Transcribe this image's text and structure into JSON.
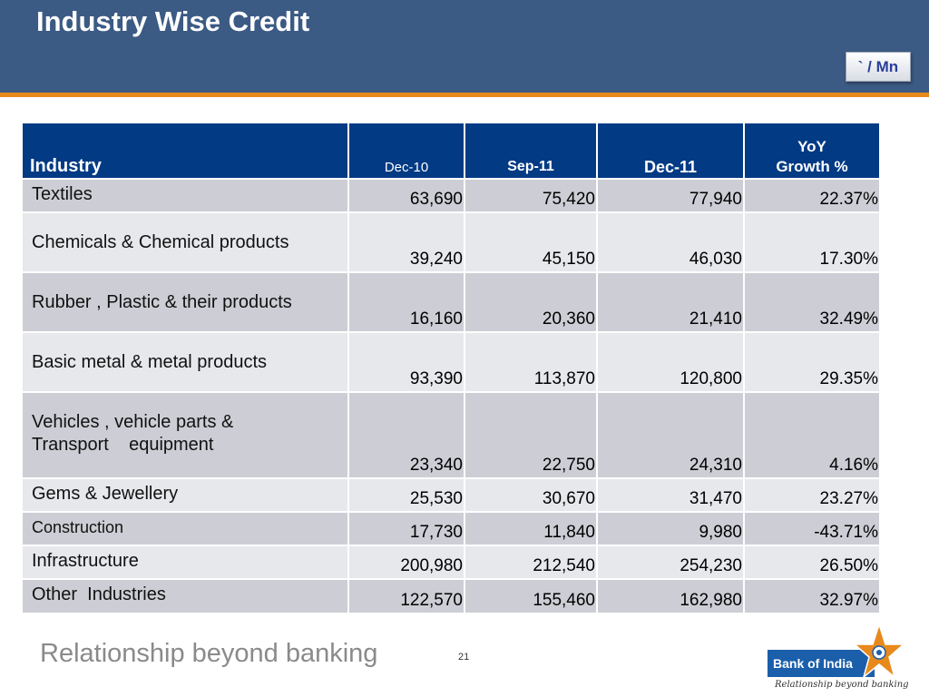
{
  "slide": {
    "title": "Industry Wise Credit",
    "unit_button": "` / Mn",
    "page_number": "21",
    "footer_tagline": "Relationship beyond banking"
  },
  "logo": {
    "name": "Bank of India",
    "tagline": "Relationship beyond banking",
    "star_icon": "bank-star-logo-icon",
    "colors": {
      "box": "#1b5fab",
      "star": "#e8891c"
    }
  },
  "table": {
    "headers": [
      "Industry",
      "Dec-10",
      "Sep-11",
      "Dec-11",
      "YoY Growth %"
    ],
    "rows": [
      {
        "industry": "Textiles",
        "dec10": "63,690",
        "sep11": "75,420",
        "dec11": "77,940",
        "yoy": "22.37%"
      },
      {
        "industry": "Chemicals & Chemical products",
        "dec10": "39,240",
        "sep11": "45,150",
        "dec11": "46,030",
        "yoy": "17.30%"
      },
      {
        "industry": "Rubber , Plastic & their products",
        "dec10": "16,160",
        "sep11": "20,360",
        "dec11": "21,410",
        "yoy": "32.49%"
      },
      {
        "industry": "Basic metal & metal products",
        "dec10": "93,390",
        "sep11": "113,870",
        "dec11": "120,800",
        "yoy": "29.35%"
      },
      {
        "industry": "Vehicles , vehicle parts & Transport    equipment",
        "dec10": "23,340",
        "sep11": "22,750",
        "dec11": "24,310",
        "yoy": "4.16%"
      },
      {
        "industry": "Gems & Jewellery",
        "dec10": "25,530",
        "sep11": "30,670",
        "dec11": "31,470",
        "yoy": "23.27%"
      },
      {
        "industry": "Construction",
        "dec10": "17,730",
        "sep11": "11,840",
        "dec11": "9,980",
        "yoy": "-43.71%"
      },
      {
        "industry": "Infrastructure",
        "dec10": "200,980",
        "sep11": "212,540",
        "dec11": "254,230",
        "yoy": "26.50%"
      },
      {
        "industry": "Other  Industries",
        "dec10": "122,570",
        "sep11": "155,460",
        "dec11": "162,980",
        "yoy": "32.97%"
      }
    ]
  },
  "colors": {
    "header_bar": "#3b5a84",
    "accent_rule": "#e8891c",
    "table_header": "#023a84",
    "row_odd": "#cdced5",
    "row_even": "#e7e8ec"
  }
}
